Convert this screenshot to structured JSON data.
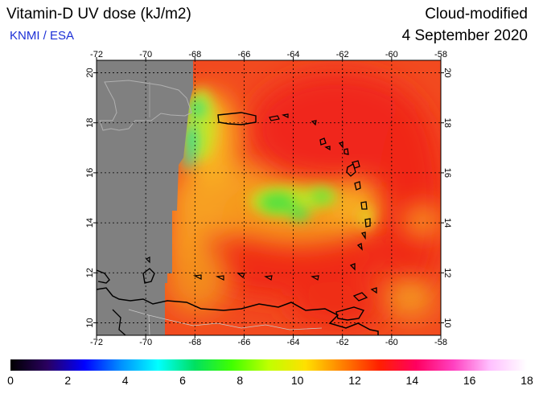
{
  "header": {
    "title": "Vitamin-D UV dose (kJ/m2)",
    "organization": "KNMI / ESA",
    "product": "Cloud-modified",
    "date": "4 September 2020"
  },
  "map": {
    "lon_range": [
      -72,
      -58
    ],
    "lat_range": [
      9.5,
      20.5
    ],
    "lon_ticks": [
      "-72",
      "-70",
      "-68",
      "-66",
      "-64",
      "-62",
      "-60",
      "-58"
    ],
    "lat_ticks": [
      "10",
      "12",
      "14",
      "16",
      "18",
      "20"
    ],
    "no_data_color": "#808080",
    "grid": "dotted"
  },
  "colorbar": {
    "labels": [
      "0",
      "2",
      "4",
      "6",
      "8",
      "10",
      "12",
      "14",
      "16",
      "18"
    ],
    "range": [
      0,
      18
    ],
    "colors": [
      "#000000",
      "#2a0060",
      "#0000ff",
      "#0090ff",
      "#00ffff",
      "#00e060",
      "#40ff00",
      "#c0ff00",
      "#ffe000",
      "#ff8000",
      "#ff2000",
      "#ff0060",
      "#ff40c0",
      "#ffc0ff",
      "#ffffff"
    ]
  }
}
